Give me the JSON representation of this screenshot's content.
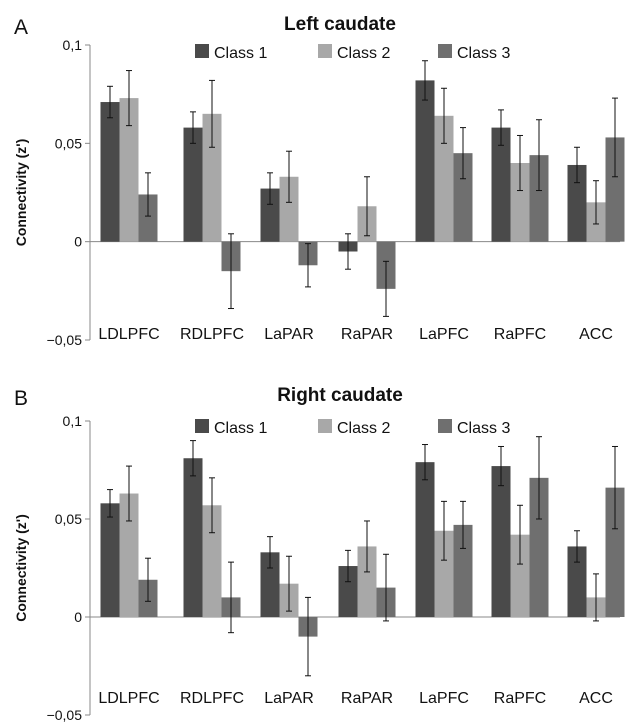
{
  "chart_data": [
    {
      "panel": "A",
      "type": "bar",
      "title": "Left caudate",
      "ylabel": "Connectivity (z')",
      "xlabel": "",
      "ylim": [
        -0.05,
        0.1
      ],
      "yticks": [
        "0,1",
        "0,05",
        "0",
        "−0,05"
      ],
      "ytick_values": [
        0.1,
        0.05,
        0,
        -0.05
      ],
      "categories": [
        "LDLPFC",
        "RDLPFC",
        "LaPAR",
        "RaPAR",
        "LaPFC",
        "RaPFC",
        "ACC"
      ],
      "legend_position": "top",
      "series": [
        {
          "name": "Class 1",
          "color": "#4a4a4a",
          "values": [
            0.071,
            0.058,
            0.027,
            -0.005,
            0.082,
            0.058,
            0.039
          ],
          "errors": [
            0.008,
            0.008,
            0.008,
            0.009,
            0.01,
            0.009,
            0.009
          ]
        },
        {
          "name": "Class 2",
          "color": "#a8a8a8",
          "values": [
            0.073,
            0.065,
            0.033,
            0.018,
            0.064,
            0.04,
            0.02
          ],
          "errors": [
            0.014,
            0.017,
            0.013,
            0.015,
            0.014,
            0.014,
            0.011
          ]
        },
        {
          "name": "Class 3",
          "color": "#6f6f6f",
          "values": [
            0.024,
            -0.015,
            -0.012,
            -0.024,
            0.045,
            0.044,
            0.053
          ],
          "errors": [
            0.011,
            0.019,
            0.011,
            0.014,
            0.013,
            0.018,
            0.02
          ]
        }
      ]
    },
    {
      "panel": "B",
      "type": "bar",
      "title": "Right caudate",
      "ylabel": "Connectivity (z')",
      "xlabel": "",
      "ylim": [
        -0.05,
        0.1
      ],
      "yticks": [
        "0,1",
        "0,05",
        "0",
        "−0,05"
      ],
      "ytick_values": [
        0.1,
        0.05,
        0,
        -0.05
      ],
      "categories": [
        "LDLPFC",
        "RDLPFC",
        "LaPAR",
        "RaPAR",
        "LaPFC",
        "RaPFC",
        "ACC"
      ],
      "legend_position": "top",
      "series": [
        {
          "name": "Class 1",
          "color": "#4a4a4a",
          "values": [
            0.058,
            0.081,
            0.033,
            0.026,
            0.079,
            0.077,
            0.036
          ],
          "errors": [
            0.007,
            0.009,
            0.008,
            0.008,
            0.009,
            0.01,
            0.008
          ]
        },
        {
          "name": "Class 2",
          "color": "#a8a8a8",
          "values": [
            0.063,
            0.057,
            0.017,
            0.036,
            0.044,
            0.042,
            0.01
          ],
          "errors": [
            0.014,
            0.014,
            0.014,
            0.013,
            0.015,
            0.015,
            0.012
          ]
        },
        {
          "name": "Class 3",
          "color": "#6f6f6f",
          "values": [
            0.019,
            0.01,
            -0.01,
            0.015,
            0.047,
            0.071,
            0.066
          ],
          "errors": [
            0.011,
            0.018,
            0.02,
            0.017,
            0.012,
            0.021,
            0.021
          ]
        }
      ]
    }
  ]
}
